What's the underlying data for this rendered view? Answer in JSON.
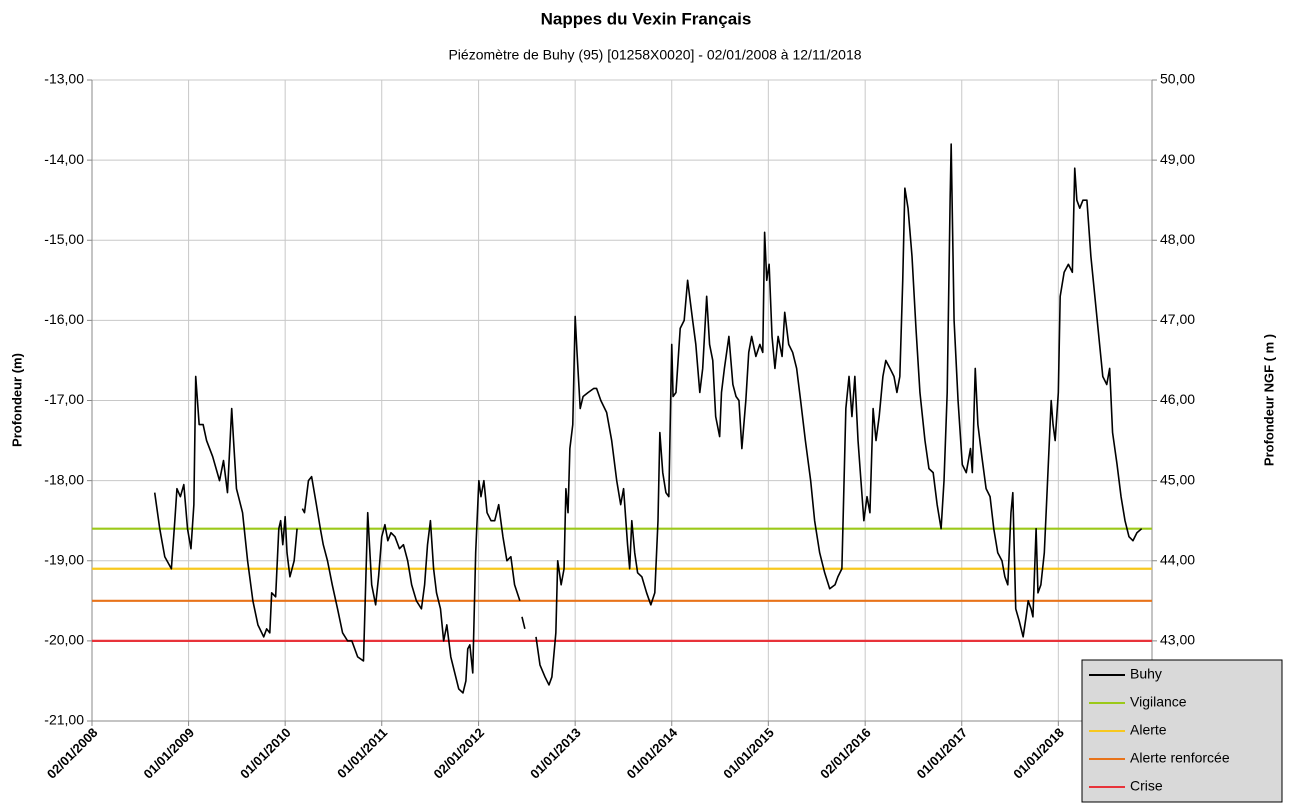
{
  "chart_data": {
    "type": "line",
    "title": "Nappes du Vexin Français",
    "subtitle": "Piézomètre de Buhy (95) [01258X0020] - 02/01/2008 à 12/11/2018",
    "y_label": "Profondeur (m)",
    "y2_label": "Profondeur NGF ( m )",
    "xlim": [
      "2008-01-02",
      "2018-12-21"
    ],
    "xticks": [
      {
        "value": "2008-01-02",
        "label": "02/01/2008"
      },
      {
        "value": "2009-01-01",
        "label": "01/01/2009"
      },
      {
        "value": "2010-01-01",
        "label": "01/01/2010"
      },
      {
        "value": "2011-01-01",
        "label": "01/01/2011"
      },
      {
        "value": "2012-01-02",
        "label": "02/01/2012"
      },
      {
        "value": "2013-01-01",
        "label": "01/01/2013"
      },
      {
        "value": "2014-01-01",
        "label": "01/01/2014"
      },
      {
        "value": "2015-01-01",
        "label": "01/01/2015"
      },
      {
        "value": "2016-01-02",
        "label": "02/01/2016"
      },
      {
        "value": "2017-01-01",
        "label": "01/01/2017"
      },
      {
        "value": "2018-01-01",
        "label": "01/01/2018"
      }
    ],
    "ylim": [
      -21,
      -13
    ],
    "yticks": [
      {
        "value": -13,
        "label": "-13,00"
      },
      {
        "value": -14,
        "label": "-14,00"
      },
      {
        "value": -15,
        "label": "-15,00"
      },
      {
        "value": -16,
        "label": "-16,00"
      },
      {
        "value": -17,
        "label": "-17,00"
      },
      {
        "value": -18,
        "label": "-18,00"
      },
      {
        "value": -19,
        "label": "-19,00"
      },
      {
        "value": -20,
        "label": "-20,00"
      },
      {
        "value": -21,
        "label": "-21,00"
      }
    ],
    "y2lim": [
      42,
      50
    ],
    "y2ticks": [
      {
        "value": 43,
        "label": "43,00"
      },
      {
        "value": 44,
        "label": "44,00"
      },
      {
        "value": 45,
        "label": "45,00"
      },
      {
        "value": 46,
        "label": "46,00"
      },
      {
        "value": 47,
        "label": "47,00"
      },
      {
        "value": 48,
        "label": "48,00"
      },
      {
        "value": 49,
        "label": "49,00"
      },
      {
        "value": 50,
        "label": "50,00"
      }
    ],
    "grid": true,
    "legend": "bottom-right",
    "series": [
      {
        "name": "Buhy",
        "color": "#000000",
        "x": [
          "2008-08-26",
          "2008-09-14",
          "2008-10-03",
          "2008-10-28",
          "2008-11-10",
          "2008-11-18",
          "2008-12-01",
          "2008-12-14",
          "2008-12-28",
          "2009-01-10",
          "2009-01-21",
          "2009-01-28",
          "2009-02-10",
          "2009-02-25",
          "2009-03-10",
          "2009-04-02",
          "2009-04-28",
          "2009-05-13",
          "2009-05-28",
          "2009-06-13",
          "2009-06-20",
          "2009-07-01",
          "2009-07-24",
          "2009-08-12",
          "2009-09-01",
          "2009-09-20",
          "2009-10-12",
          "2009-10-23",
          "2009-11-04",
          "2009-11-11",
          "2009-11-26",
          "2009-12-08",
          "2009-12-15",
          "2009-12-23",
          "2010-01-01",
          "2010-01-08",
          "2010-01-19",
          "2010-02-04",
          "2010-02-15",
          "2010-02-25",
          "2010-03-07",
          "2010-03-15",
          "2010-03-30",
          "2010-04-11",
          "2010-04-29",
          "2010-05-14",
          "2010-05-25",
          "2010-06-10",
          "2010-06-28",
          "2010-07-18",
          "2010-08-06",
          "2010-08-25",
          "2010-09-10",
          "2010-10-02",
          "2010-10-24",
          "2010-11-09",
          "2010-11-24",
          "2010-12-09",
          "2010-12-20",
          "2011-01-01",
          "2011-01-13",
          "2011-01-24",
          "2011-02-05",
          "2011-02-20",
          "2011-03-09",
          "2011-03-24",
          "2011-04-09",
          "2011-04-24",
          "2011-05-12",
          "2011-05-31",
          "2011-06-12",
          "2011-06-23",
          "2011-07-04",
          "2011-07-16",
          "2011-07-27",
          "2011-08-11",
          "2011-08-23",
          "2011-09-04",
          "2011-09-19",
          "2011-10-04",
          "2011-10-19",
          "2011-11-04",
          "2011-11-15",
          "2011-11-22",
          "2011-11-30",
          "2011-12-11",
          "2011-12-22",
          "2012-01-03",
          "2012-01-11",
          "2012-01-22",
          "2012-02-03",
          "2012-02-18",
          "2012-03-03",
          "2012-03-18",
          "2012-04-03",
          "2012-04-18",
          "2012-05-03",
          "2012-05-17",
          "2012-06-06",
          "2012-06-10",
          "2012-06-14",
          "2012-06-25",
          "2012-07-10",
          "2012-07-21",
          "2012-07-30",
          "2012-08-06",
          "2012-08-21",
          "2012-09-09",
          "2012-09-24",
          "2012-10-05",
          "2012-10-20",
          "2012-10-27",
          "2012-11-09",
          "2012-11-20",
          "2012-11-27",
          "2012-12-05",
          "2012-12-12",
          "2012-12-23",
          "2013-01-01",
          "2013-01-08",
          "2013-01-20",
          "2013-01-31",
          "2013-02-19",
          "2013-03-12",
          "2013-03-23",
          "2013-04-08",
          "2013-04-30",
          "2013-05-19",
          "2013-06-07",
          "2013-06-22",
          "2013-07-03",
          "2013-07-18",
          "2013-07-26",
          "2013-08-03",
          "2013-08-14",
          "2013-08-25",
          "2013-09-10",
          "2013-09-28",
          "2013-10-14",
          "2013-10-29",
          "2013-11-10",
          "2013-11-17",
          "2013-11-28",
          "2013-12-10",
          "2013-12-21",
          "2014-01-01",
          "2014-01-06",
          "2014-01-17",
          "2014-02-02",
          "2014-02-17",
          "2014-03-02",
          "2014-03-21",
          "2014-04-02",
          "2014-04-17",
          "2014-04-28",
          "2014-05-13",
          "2014-05-24",
          "2014-06-05",
          "2014-06-16",
          "2014-07-01",
          "2014-07-08",
          "2014-07-19",
          "2014-08-05",
          "2014-08-20",
          "2014-09-01",
          "2014-09-12",
          "2014-09-23",
          "2014-10-08",
          "2014-10-19",
          "2014-10-30",
          "2014-11-15",
          "2014-11-30",
          "2014-12-11",
          "2014-12-18",
          "2014-12-26",
          "2015-01-04",
          "2015-01-15",
          "2015-01-26",
          "2015-02-07",
          "2015-02-22",
          "2015-03-04",
          "2015-03-19",
          "2015-04-03",
          "2015-04-18",
          "2015-05-03",
          "2015-05-21",
          "2015-06-10",
          "2015-06-25",
          "2015-07-14",
          "2015-08-02",
          "2015-08-21",
          "2015-09-10",
          "2015-09-21",
          "2015-10-06",
          "2015-10-21",
          "2015-11-02",
          "2015-11-13",
          "2015-11-24",
          "2015-12-06",
          "2015-12-17",
          "2015-12-28",
          "2016-01-09",
          "2016-01-20",
          "2016-02-01",
          "2016-02-12",
          "2016-02-24",
          "2016-03-09",
          "2016-03-20",
          "2016-04-05",
          "2016-04-20",
          "2016-05-01",
          "2016-05-12",
          "2016-05-23",
          "2016-05-31",
          "2016-06-12",
          "2016-06-27",
          "2016-07-12",
          "2016-07-27",
          "2016-08-15",
          "2016-08-30",
          "2016-09-15",
          "2016-09-30",
          "2016-10-15",
          "2016-10-26",
          "2016-11-07",
          "2016-11-18",
          "2016-11-22",
          "2016-12-03",
          "2016-12-18",
          "2017-01-03",
          "2017-01-18",
          "2017-02-03",
          "2017-02-10",
          "2017-02-21",
          "2017-03-03",
          "2017-03-18",
          "2017-04-03",
          "2017-04-18",
          "2017-05-02",
          "2017-05-17",
          "2017-06-02",
          "2017-06-13",
          "2017-06-24",
          "2017-07-06",
          "2017-07-13",
          "2017-07-24",
          "2017-08-06",
          "2017-08-21",
          "2017-09-01",
          "2017-09-09",
          "2017-09-20",
          "2017-09-27",
          "2017-10-09",
          "2017-10-16",
          "2017-10-27",
          "2017-11-09",
          "2017-11-20",
          "2017-12-05",
          "2017-12-12",
          "2017-12-20",
          "2018-01-01",
          "2018-01-08",
          "2018-01-23",
          "2018-02-08",
          "2018-02-23",
          "2018-03-04",
          "2018-03-12",
          "2018-03-23",
          "2018-04-04",
          "2018-04-19",
          "2018-05-04",
          "2018-05-19",
          "2018-06-03",
          "2018-06-18",
          "2018-07-03",
          "2018-07-14",
          "2018-07-25",
          "2018-08-11",
          "2018-08-26",
          "2018-09-10",
          "2018-09-25",
          "2018-10-10",
          "2018-10-25",
          "2018-11-12"
        ],
        "values": [
          -18.15,
          -18.6,
          -18.95,
          -19.1,
          -18.5,
          -18.1,
          -18.2,
          -18.05,
          -18.6,
          -18.85,
          -18.3,
          -16.7,
          -17.3,
          -17.3,
          -17.5,
          -17.7,
          -18.0,
          -17.75,
          -18.15,
          -17.1,
          -17.5,
          -18.1,
          -18.4,
          -19.0,
          -19.5,
          -19.8,
          -19.95,
          -19.85,
          -19.9,
          -19.4,
          -19.45,
          -18.6,
          -18.5,
          -18.8,
          -18.45,
          -18.9,
          -19.2,
          -19.0,
          -18.6,
          null,
          -18.35,
          -18.4,
          -18.0,
          -17.95,
          -18.3,
          -18.6,
          -18.8,
          -19.0,
          -19.3,
          -19.6,
          -19.9,
          -20.0,
          -20.0,
          -20.2,
          -20.25,
          -18.4,
          -19.3,
          -19.55,
          -19.2,
          -18.7,
          -18.55,
          -18.75,
          -18.65,
          -18.7,
          -18.85,
          -18.8,
          -19.0,
          -19.3,
          -19.5,
          -19.6,
          -19.3,
          -18.8,
          -18.5,
          -19.1,
          -19.4,
          -19.6,
          -20.0,
          -19.8,
          -20.2,
          -20.4,
          -20.6,
          -20.65,
          -20.5,
          -20.1,
          -20.05,
          -20.4,
          -18.9,
          -18.0,
          -18.2,
          -18.0,
          -18.4,
          -18.5,
          -18.5,
          -18.3,
          -18.7,
          -19.0,
          -18.95,
          -19.3,
          -19.5,
          null,
          -19.7,
          -19.85,
          null,
          -19.9,
          null,
          -19.95,
          -20.3,
          -20.45,
          -20.55,
          -20.45,
          -19.9,
          -19.0,
          -19.3,
          -19.1,
          -18.1,
          -18.4,
          -17.6,
          -17.3,
          -15.95,
          -16.4,
          -17.1,
          -16.95,
          -16.9,
          -16.85,
          -16.85,
          -17.0,
          -17.15,
          -17.5,
          -18.0,
          -18.3,
          -18.1,
          -18.8,
          -19.1,
          -18.5,
          -18.9,
          -19.15,
          -19.2,
          -19.4,
          -19.55,
          -19.4,
          -18.5,
          -17.4,
          -17.9,
          -18.15,
          -18.2,
          -16.3,
          -16.95,
          -16.9,
          -16.1,
          -16.0,
          -15.5,
          -16.0,
          -16.3,
          -16.9,
          -16.6,
          -15.7,
          -16.3,
          -16.5,
          -17.2,
          -17.45,
          -16.9,
          -16.6,
          -16.2,
          -16.8,
          -16.95,
          -17.0,
          -17.6,
          -17.0,
          -16.4,
          -16.2,
          -16.45,
          -16.3,
          -16.4,
          -14.9,
          -15.5,
          -15.3,
          -16.2,
          -16.6,
          -16.2,
          -16.45,
          -15.9,
          -16.3,
          -16.4,
          -16.6,
          -17.0,
          -17.5,
          -18.0,
          -18.5,
          -18.9,
          -19.15,
          -19.35,
          -19.3,
          -19.2,
          -19.1,
          -17.1,
          -16.7,
          -17.2,
          -16.7,
          -17.5,
          -18.0,
          -18.5,
          -18.2,
          -18.4,
          -17.1,
          -17.5,
          -17.2,
          -16.7,
          -16.5,
          -16.6,
          -16.7,
          -16.9,
          -16.7,
          -15.5,
          -14.35,
          -14.6,
          -15.2,
          -16.1,
          -16.9,
          -17.5,
          -17.85,
          -17.9,
          -18.3,
          -18.6,
          -18.0,
          -16.9,
          -14.5,
          -13.8,
          -16.0,
          -17.0,
          -17.8,
          -17.9,
          -17.6,
          -17.9,
          -16.6,
          -17.3,
          -17.7,
          -18.1,
          -18.2,
          -18.6,
          -18.9,
          -19.0,
          -19.2,
          -19.3,
          -18.4,
          -18.15,
          -19.6,
          -19.75,
          -19.95,
          -19.7,
          -19.5,
          -19.6,
          -19.7,
          -18.6,
          -19.4,
          -19.3,
          -18.9,
          -18.1,
          -17.0,
          -17.3,
          -17.5,
          -16.9,
          -15.7,
          -15.4,
          -15.3,
          -15.4,
          -14.1,
          -14.5,
          -14.6,
          -14.5,
          -14.5,
          -15.2,
          -15.7,
          -16.2,
          -16.7,
          -16.8,
          -16.6,
          -17.4,
          -17.8,
          -18.2,
          -18.5,
          -18.7,
          -18.75,
          -18.65,
          -18.6
        ]
      },
      {
        "name": "Vigilance",
        "color": "#9bc919",
        "x": [
          "2008-01-02",
          "2018-12-21"
        ],
        "values": [
          -18.6,
          -18.6
        ]
      },
      {
        "name": "Alerte",
        "color": "#f7c81e",
        "x": [
          "2008-01-02",
          "2018-12-21"
        ],
        "values": [
          -19.1,
          -19.1
        ]
      },
      {
        "name": "Alerte renforcée",
        "color": "#e8731a",
        "x": [
          "2008-01-02",
          "2018-12-21"
        ],
        "values": [
          -19.5,
          -19.5
        ]
      },
      {
        "name": "Crise",
        "color": "#e8333a",
        "x": [
          "2008-01-02",
          "2018-12-21"
        ],
        "values": [
          -20.0,
          -20.0
        ]
      }
    ]
  }
}
